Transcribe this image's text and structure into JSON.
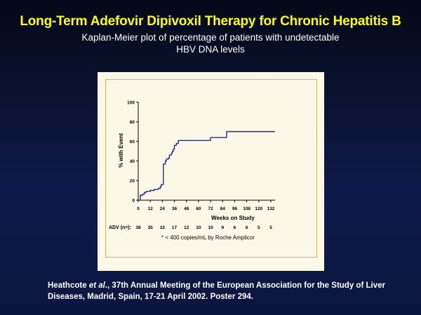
{
  "slide": {
    "title": "Long-Term Adefovir Dipivoxil Therapy for Chronic Hepatitis B",
    "subtitle_line1": "Kaplan-Meier plot of percentage of patients with undetectable",
    "subtitle_line2": "HBV DNA levels",
    "citation_author": "Heathcote",
    "citation_etal": "et al",
    "citation_rest": "., 37th Annual Meeting of the European Association for the Study of Liver Diseases, Madrid, Spain, 17-21 April 2002. Poster 294."
  },
  "colors": {
    "title": "#ffff00",
    "line": "#2a2f7a",
    "frame": "#e8b82a",
    "panel": "#fbf8e8",
    "axis": "#000000"
  },
  "chart_data": {
    "type": "line",
    "step": true,
    "ylabel": "% with Event",
    "xlabel": "Weeks on Study",
    "ylim": [
      0,
      100
    ],
    "xlim": [
      0,
      132
    ],
    "yticks": [
      0,
      20,
      40,
      60,
      80,
      100
    ],
    "xticks": [
      0,
      12,
      24,
      36,
      48,
      60,
      72,
      84,
      96,
      108,
      120,
      132
    ],
    "footnote": "* < 400 copies/mL by Roche Amplicor",
    "at_risk_label": "ADV (n=):",
    "at_risk": [
      "38",
      "35",
      "32",
      "17",
      "12",
      "10",
      "10",
      "9",
      "6",
      "6",
      "5",
      "5"
    ],
    "series": [
      {
        "x": [
          0,
          2,
          4,
          6,
          8,
          12,
          16,
          20,
          22,
          23,
          25,
          27,
          28,
          30,
          31,
          33,
          34,
          35,
          36,
          38,
          40,
          44,
          48,
          50,
          54,
          60,
          64,
          68,
          72,
          80,
          84,
          86,
          88,
          96,
          108,
          120,
          136
        ],
        "y": [
          0,
          5,
          6,
          8,
          9,
          10,
          11,
          12,
          14,
          16,
          37,
          40,
          42,
          43,
          46,
          48,
          50,
          52,
          56,
          58,
          61,
          61,
          61,
          61,
          61,
          61,
          61,
          61,
          64,
          64,
          64,
          64,
          70,
          70,
          70,
          70,
          70
        ]
      }
    ]
  }
}
